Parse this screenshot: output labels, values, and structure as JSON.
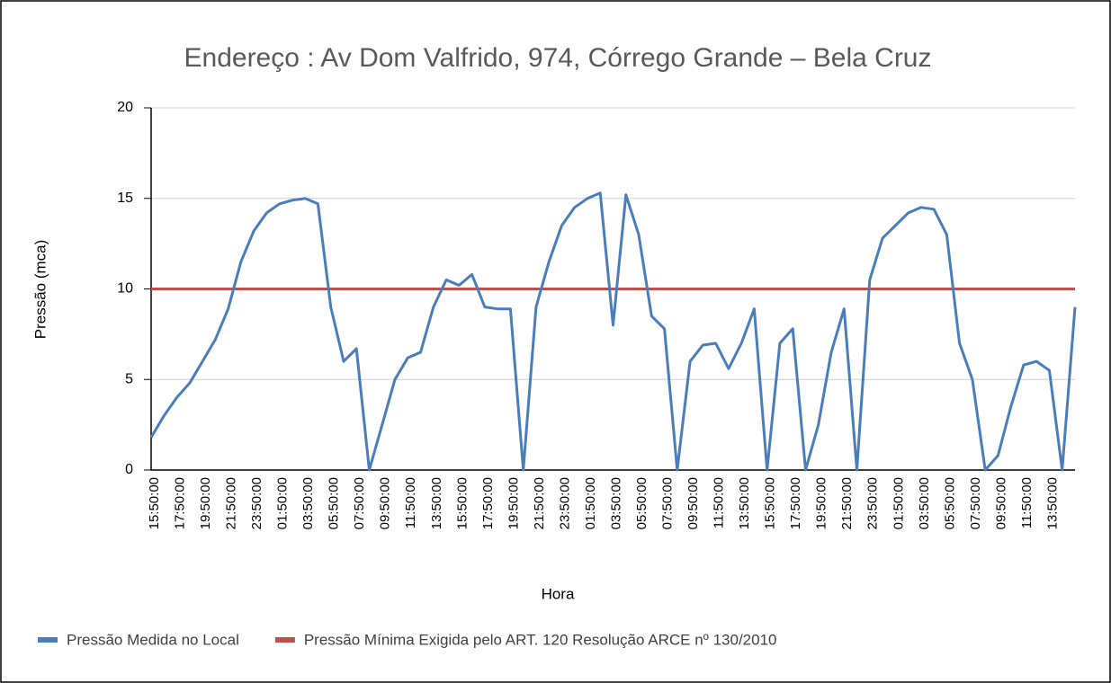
{
  "chart_data": {
    "type": "line",
    "title": "Endereço : Av Dom Valfrido, 974, Córrego Grande  – Bela Cruz",
    "x_label": "Hora",
    "y_label": "Pressão (mca)",
    "categories": [
      "15:50:00",
      null,
      "17:50:00",
      null,
      "19:50:00",
      null,
      "21:50:00",
      null,
      "23:50:00",
      null,
      "01:50:00",
      null,
      "03:50:00",
      null,
      "05:50:00",
      null,
      "07:50:00",
      null,
      "09:50:00",
      null,
      "11:50:00",
      null,
      "13:50:00",
      null,
      "15:50:00",
      null,
      "17:50:00",
      null,
      "19:50:00",
      null,
      "21:50:00",
      null,
      "23:50:00",
      null,
      "01:50:00",
      null,
      "03:50:00",
      null,
      "05:50:00",
      null,
      "07:50:00",
      null,
      "09:50:00",
      null,
      "11:50:00",
      null,
      "13:50:00",
      null,
      "15:50:00",
      null,
      "17:50:00",
      null,
      "19:50:00",
      null,
      "21:50:00",
      null,
      "23:50:00",
      null,
      "01:50:00",
      null,
      "03:50:00",
      null,
      "05:50:00",
      null,
      "07:50:00",
      null,
      "09:50:00",
      null,
      "11:50:00",
      null,
      "13:50:00",
      null,
      null
    ],
    "series": [
      {
        "name": "Pressão Medida no Local",
        "color": "#4a7ebb",
        "values": [
          1.8,
          3.0,
          4.0,
          4.8,
          6.0,
          7.2,
          8.9,
          11.5,
          13.2,
          14.2,
          14.7,
          14.9,
          15.0,
          14.7,
          9.0,
          6.0,
          6.7,
          0,
          2.5,
          5.0,
          6.2,
          6.5,
          9.0,
          10.5,
          10.2,
          10.8,
          9.0,
          8.9,
          8.9,
          0,
          9.0,
          11.5,
          13.5,
          14.5,
          15.0,
          15.3,
          8.0,
          15.2,
          13.0,
          8.5,
          7.8,
          0,
          6.0,
          6.9,
          7.0,
          5.6,
          7.0,
          8.9,
          0,
          7.0,
          7.8,
          0,
          2.5,
          6.5,
          8.9,
          0,
          10.5,
          12.8,
          13.5,
          14.2,
          14.5,
          14.4,
          13.0,
          7.0,
          5.0,
          0,
          0.8,
          3.5,
          5.8,
          6.0,
          5.5,
          0,
          9.0
        ]
      },
      {
        "name": "Pressão Mínima Exigida pelo ART. 120 Resolução ARCE nº 130/2010",
        "color": "#c0504d",
        "values": [
          10,
          10,
          10,
          10,
          10,
          10,
          10,
          10,
          10,
          10,
          10,
          10,
          10,
          10,
          10,
          10,
          10,
          10,
          10,
          10,
          10,
          10,
          10,
          10,
          10,
          10,
          10,
          10,
          10,
          10,
          10,
          10,
          10,
          10,
          10,
          10,
          10,
          10,
          10,
          10,
          10,
          10,
          10,
          10,
          10,
          10,
          10,
          10,
          10,
          10,
          10,
          10,
          10,
          10,
          10,
          10,
          10,
          10,
          10,
          10,
          10,
          10,
          10,
          10,
          10,
          10,
          10,
          10,
          10,
          10,
          10,
          10,
          10
        ]
      }
    ],
    "ylim": [
      0,
      20
    ],
    "yticks": [
      0,
      5,
      10,
      15,
      20
    ],
    "grid": true,
    "legend": "bottom"
  }
}
